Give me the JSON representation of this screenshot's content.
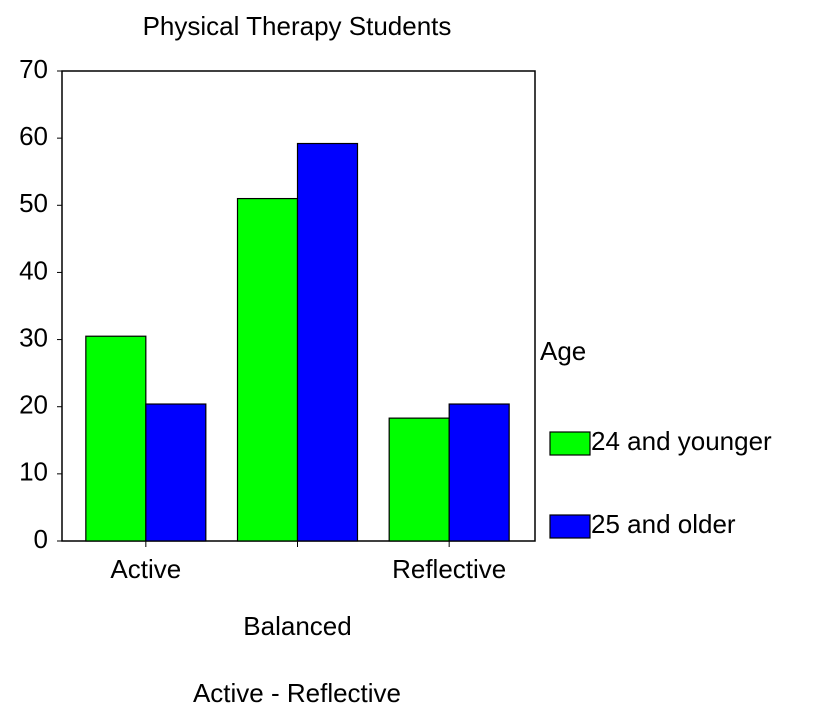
{
  "chart_data": {
    "type": "bar",
    "title": "Physical Therapy Students",
    "x_label": "Active - Reflective",
    "categories": [
      "Active",
      "Balanced",
      "Reflective"
    ],
    "series": [
      {
        "name": "24 and younger",
        "color": "#00ff00",
        "values": [
          30.5,
          51,
          18.3
        ]
      },
      {
        "name": "25 and older",
        "color": "#0000ff",
        "values": [
          20.4,
          59.2,
          20.4
        ]
      }
    ],
    "legend_title": "Age",
    "legend_position": "right",
    "ylim": [
      0,
      70
    ],
    "yticks": [
      0,
      10,
      20,
      30,
      40,
      50,
      60,
      70
    ],
    "grid": false
  }
}
